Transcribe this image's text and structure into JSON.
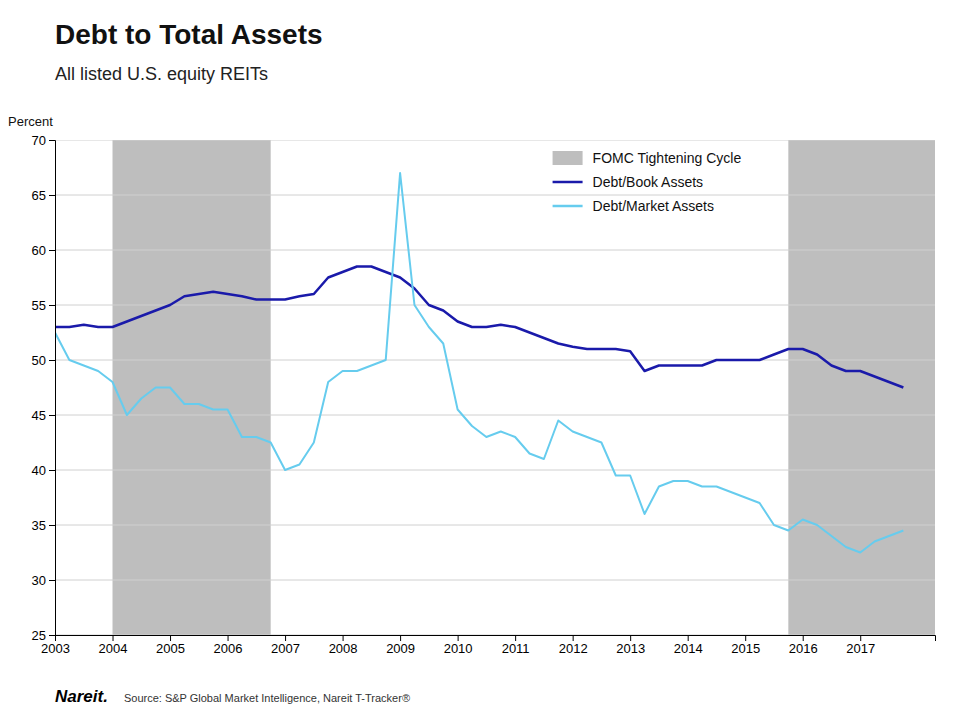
{
  "chart_data": {
    "type": "line",
    "title": "Debt to Total Assets",
    "subtitle": "All listed U.S. equity REITs",
    "y_label": "Percent",
    "annotations": [
      "Nareit.",
      "Source: S&P Global Market Intelligence, Nareit T-Tracker®"
    ],
    "x": [
      2003.0,
      2003.25,
      2003.5,
      2003.75,
      2004.0,
      2004.25,
      2004.5,
      2004.75,
      2005.0,
      2005.25,
      2005.5,
      2005.75,
      2006.0,
      2006.25,
      2006.5,
      2006.75,
      2007.0,
      2007.25,
      2007.5,
      2007.75,
      2008.0,
      2008.25,
      2008.5,
      2008.75,
      2009.0,
      2009.25,
      2009.5,
      2009.75,
      2010.0,
      2010.25,
      2010.5,
      2010.75,
      2011.0,
      2011.25,
      2011.5,
      2011.75,
      2012.0,
      2012.25,
      2012.5,
      2012.75,
      2013.0,
      2013.25,
      2013.5,
      2013.75,
      2014.0,
      2014.25,
      2014.5,
      2014.75,
      2015.0,
      2015.25,
      2015.5,
      2015.75,
      2016.0,
      2016.25,
      2016.5,
      2016.75,
      2017.0,
      2017.25,
      2017.5,
      2017.75
    ],
    "series": [
      {
        "name": "Debt/Book Assets",
        "color": "#1a1aaa",
        "values": [
          53.0,
          53.0,
          53.2,
          53.0,
          53.0,
          53.5,
          54.0,
          54.5,
          55.0,
          55.8,
          56.0,
          56.2,
          56.0,
          55.8,
          55.5,
          55.5,
          55.5,
          55.8,
          56.0,
          57.5,
          58.0,
          58.5,
          58.5,
          58.0,
          57.5,
          56.5,
          55.0,
          54.5,
          53.5,
          53.0,
          53.0,
          53.2,
          53.0,
          52.5,
          52.0,
          51.5,
          51.2,
          51.0,
          51.0,
          51.0,
          50.8,
          49.0,
          49.5,
          49.5,
          49.5,
          49.5,
          50.0,
          50.0,
          50.0,
          50.0,
          50.5,
          51.0,
          51.0,
          50.5,
          49.5,
          49.0,
          49.0,
          48.5,
          48.0,
          47.5
        ]
      },
      {
        "name": "Debt/Market Assets",
        "color": "#66ccee",
        "values": [
          52.5,
          50.0,
          49.5,
          49.0,
          48.0,
          45.0,
          46.5,
          47.5,
          47.5,
          46.0,
          46.0,
          45.5,
          45.5,
          43.0,
          43.0,
          42.5,
          40.0,
          40.5,
          42.5,
          48.0,
          49.0,
          49.0,
          49.5,
          50.0,
          67.0,
          55.0,
          53.0,
          51.5,
          45.5,
          44.0,
          43.0,
          43.5,
          43.0,
          41.5,
          41.0,
          44.5,
          43.5,
          43.0,
          42.5,
          39.5,
          39.5,
          36.0,
          38.5,
          39.0,
          39.0,
          38.5,
          38.5,
          38.0,
          37.5,
          37.0,
          35.0,
          34.5,
          35.5,
          35.0,
          34.0,
          33.0,
          32.5,
          33.5,
          34.0,
          34.5
        ]
      }
    ],
    "shaded_regions": {
      "name": "FOMC Tightening Cycle",
      "color": "#bebebe",
      "spans": [
        [
          2004.0,
          2006.75
        ],
        [
          2015.75,
          2018.3
        ]
      ]
    },
    "xlim": [
      2003.0,
      2018.3
    ],
    "xticks": [
      2003,
      2004,
      2005,
      2006,
      2007,
      2008,
      2009,
      2010,
      2011,
      2012,
      2013,
      2014,
      2015,
      2016,
      2017
    ],
    "ylim": [
      25,
      70
    ],
    "yticks": [
      25,
      30,
      35,
      40,
      45,
      50,
      55,
      60,
      65,
      70
    ],
    "grid": true,
    "legend": "upper right"
  }
}
